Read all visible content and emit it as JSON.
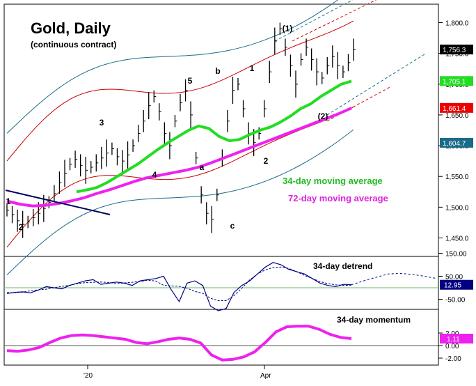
{
  "title": "Gold, Daily",
  "subtitle": "(continuous contract)",
  "colors": {
    "price": "#000000",
    "ma34": "#22dd22",
    "ma72": "#ee22ee",
    "band_outer": "#1a6b8a",
    "band_inner": "#cc0000",
    "detrend": "#000080",
    "momentum": "#ee22ee",
    "channel_blue": "#1a6b8a",
    "channel_red": "#cc0000",
    "trendline": "#000060"
  },
  "chart_data": [
    {
      "type": "line",
      "panel": "price",
      "title": "Gold, Daily",
      "subtitle": "(continuous contract)",
      "ylim": [
        1420,
        1830
      ],
      "y_ticks": [
        "1,800.0",
        "1,750.0",
        "1,700.0",
        "1,650.0",
        "1,600.0",
        "1,550.0",
        "1,500.0",
        "1,450.0"
      ],
      "y_tick_values": [
        1800,
        1750,
        1700,
        1650,
        1600,
        1550,
        1500,
        1450
      ],
      "x_labels": [
        "'20",
        "Apr"
      ],
      "series": [
        {
          "name": "34-day moving average",
          "label": "34-day moving average"
        },
        {
          "name": "72-day moving average",
          "label": "72-day moving average"
        }
      ],
      "value_tags": [
        {
          "text": "1,756.3",
          "value": 1756.3,
          "bg": "#000000",
          "fg": "#ffffff"
        },
        {
          "text": "1,705.1",
          "value": 1705.1,
          "bg": "#22dd22",
          "fg": "#ffffff"
        },
        {
          "text": "1,661.4",
          "value": 1661.4,
          "bg": "#ee0000",
          "fg": "#ffffff"
        },
        {
          "text": "1,604.7",
          "value": 1604.7,
          "bg": "#1a6b8a",
          "fg": "#ffffff"
        }
      ],
      "wave_labels": [
        "1",
        "2",
        "3",
        "4",
        "5",
        "a",
        "b",
        "c",
        "1",
        "2",
        "(1)",
        "(2)"
      ],
      "price_series": [
        1495,
        1488,
        1478,
        1472,
        1476,
        1483,
        1490,
        1498,
        1508,
        1522,
        1540,
        1555,
        1570,
        1578,
        1568,
        1560,
        1565,
        1572,
        1580,
        1588,
        1595,
        1582,
        1575,
        1585,
        1600,
        1620,
        1640,
        1665,
        1680,
        1655,
        1620,
        1600,
        1640,
        1670,
        1690,
        1650,
        1580,
        1520,
        1490,
        1480,
        1520,
        1580,
        1640,
        1690,
        1700,
        1660,
        1620,
        1605,
        1620,
        1660,
        1720,
        1770,
        1790,
        1760,
        1730,
        1700,
        1740,
        1760,
        1740,
        1720,
        1710,
        1730,
        1745,
        1730,
        1720,
        1735,
        1756
      ],
      "ma34": [
        1525,
        1528,
        1532,
        1540,
        1550,
        1560,
        1570,
        1582,
        1594,
        1605,
        1615,
        1625,
        1632,
        1628,
        1615,
        1608,
        1610,
        1618,
        1625,
        1630,
        1638,
        1648,
        1660,
        1668,
        1680,
        1690,
        1700,
        1705
      ],
      "ma72": [
        1510,
        1505,
        1502,
        1503,
        1506,
        1510,
        1515,
        1522,
        1528,
        1535,
        1542,
        1548,
        1552,
        1556,
        1560,
        1565,
        1572,
        1580,
        1588,
        1596,
        1604,
        1612,
        1620,
        1628,
        1636,
        1644,
        1652,
        1661
      ]
    },
    {
      "type": "line",
      "panel": "detrend",
      "title": "34-day detrend",
      "y_ticks": [
        "150.00",
        "50.00",
        "-50.00"
      ],
      "y_tick_values": [
        150,
        50,
        -50
      ],
      "last_value": "12.95",
      "last_value_num": 12.95,
      "series_values": [
        -25,
        -20,
        -18,
        -22,
        -10,
        5,
        0,
        -5,
        10,
        20,
        30,
        35,
        15,
        20,
        25,
        20,
        10,
        30,
        35,
        40,
        50,
        -10,
        -60,
        20,
        30,
        10,
        -80,
        -100,
        -90,
        -20,
        10,
        30,
        60,
        90,
        110,
        100,
        80,
        70,
        60,
        40,
        20,
        10,
        5,
        15,
        12.95
      ],
      "projection": [
        12.95,
        30,
        45,
        60,
        62,
        58,
        50,
        40
      ]
    },
    {
      "type": "line",
      "panel": "momentum",
      "title": "34-day momentum",
      "y_ticks": [
        "2.00",
        "0.00",
        "-2.00"
      ],
      "y_tick_values": [
        2,
        0,
        -2
      ],
      "last_value": "1.11",
      "last_value_num": 1.11,
      "series_values": [
        -0.8,
        -0.9,
        -0.7,
        -0.3,
        0.5,
        1.2,
        1.6,
        1.7,
        1.6,
        1.4,
        1.2,
        1.0,
        0.5,
        0.3,
        0.6,
        1.0,
        1.2,
        1.0,
        0.4,
        -1.5,
        -2.3,
        -2.2,
        -1.8,
        -1.0,
        0.5,
        2.2,
        3.0,
        3.1,
        3.1,
        2.6,
        1.8,
        1.3,
        1.11
      ]
    }
  ]
}
